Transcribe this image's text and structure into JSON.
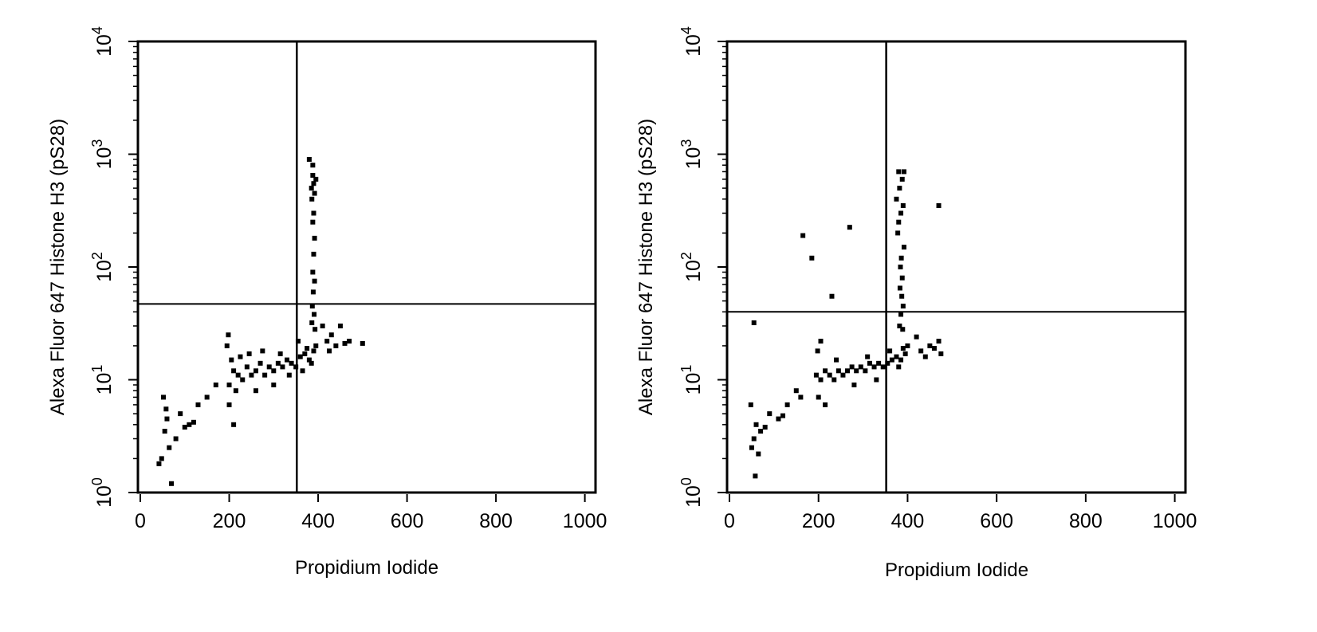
{
  "chart_data": [
    {
      "type": "scatter",
      "xlabel": "Propidium Iodide",
      "ylabel": "Alexa Fluor 647 Histone H3 (pS28)",
      "xlim": [
        0,
        1024
      ],
      "ylim": [
        1,
        10000
      ],
      "y_scale": "log",
      "x_ticks": [
        "0",
        "200",
        "400",
        "600",
        "800",
        "1000"
      ],
      "y_ticks": [
        {
          "base": "10",
          "exp": "0"
        },
        {
          "base": "10",
          "exp": "1"
        },
        {
          "base": "10",
          "exp": "2"
        },
        {
          "base": "10",
          "exp": "3"
        },
        {
          "base": "10",
          "exp": "4"
        }
      ],
      "gate": {
        "x": 352,
        "y": 47
      },
      "grid": false,
      "series": [
        {
          "values": [
            [
              200,
              9
            ],
            [
              210,
              12
            ],
            [
              215,
              8
            ],
            [
              220,
              11
            ],
            [
              230,
              10
            ],
            [
              240,
              13
            ],
            [
              250,
              11
            ],
            [
              260,
              12
            ],
            [
              270,
              14
            ],
            [
              280,
              11
            ],
            [
              290,
              13
            ],
            [
              300,
              12
            ],
            [
              310,
              14
            ],
            [
              320,
              13
            ],
            [
              330,
              15
            ],
            [
              340,
              14
            ],
            [
              350,
              13
            ],
            [
              360,
              16
            ],
            [
              370,
              17
            ],
            [
              380,
              15
            ],
            [
              390,
              18
            ],
            [
              395,
              20
            ],
            [
              200,
              6
            ],
            [
              205,
              15
            ],
            [
              195,
              20
            ],
            [
              198,
              25
            ],
            [
              210,
              4
            ],
            [
              225,
              16
            ],
            [
              260,
              8
            ],
            [
              300,
              9
            ],
            [
              245,
              17
            ],
            [
              275,
              18
            ],
            [
              315,
              17
            ],
            [
              335,
              11
            ],
            [
              355,
              22
            ],
            [
              365,
              12
            ],
            [
              375,
              19
            ],
            [
              385,
              14
            ],
            [
              385,
              500
            ],
            [
              390,
              550
            ],
            [
              392,
              450
            ],
            [
              388,
              650
            ],
            [
              395,
              600
            ],
            [
              386,
              400
            ],
            [
              390,
              300
            ],
            [
              388,
              250
            ],
            [
              392,
              180
            ],
            [
              390,
              130
            ],
            [
              388,
              90
            ],
            [
              392,
              75
            ],
            [
              389,
              60
            ],
            [
              387,
              45
            ],
            [
              391,
              38
            ],
            [
              386,
              32
            ],
            [
              393,
              28
            ],
            [
              380,
              900
            ],
            [
              388,
              800
            ],
            [
              420,
              22
            ],
            [
              440,
              20
            ],
            [
              460,
              21
            ],
            [
              430,
              25
            ],
            [
              450,
              30
            ],
            [
              470,
              22
            ],
            [
              500,
              21
            ],
            [
              410,
              30
            ],
            [
              425,
              18
            ],
            [
              48,
              2
            ],
            [
              55,
              3.5
            ],
            [
              60,
              4.5
            ],
            [
              52,
              7
            ],
            [
              70,
              1.2
            ],
            [
              90,
              5
            ],
            [
              110,
              4
            ],
            [
              130,
              6
            ],
            [
              150,
              7
            ],
            [
              65,
              2.5
            ],
            [
              80,
              3
            ],
            [
              100,
              3.8
            ],
            [
              120,
              4.2
            ],
            [
              170,
              9
            ],
            [
              42,
              1.8
            ],
            [
              58,
              5.5
            ]
          ]
        }
      ]
    },
    {
      "type": "scatter",
      "xlabel": "Propidium Iodide",
      "ylabel": "Alexa Fluor 647 Histone H3 (pS28)",
      "xlim": [
        0,
        1024
      ],
      "ylim": [
        1,
        10000
      ],
      "y_scale": "log",
      "x_ticks": [
        "0",
        "200",
        "400",
        "600",
        "800",
        "1000"
      ],
      "y_ticks": [
        {
          "base": "10",
          "exp": "0"
        },
        {
          "base": "10",
          "exp": "1"
        },
        {
          "base": "10",
          "exp": "2"
        },
        {
          "base": "10",
          "exp": "3"
        },
        {
          "base": "10",
          "exp": "4"
        }
      ],
      "gate": {
        "x": 352,
        "y": 40
      },
      "grid": false,
      "series": [
        {
          "values": [
            [
              195,
              11
            ],
            [
              205,
              10
            ],
            [
              215,
              12
            ],
            [
              225,
              11
            ],
            [
              235,
              10
            ],
            [
              245,
              12
            ],
            [
              255,
              11
            ],
            [
              265,
              12
            ],
            [
              275,
              13
            ],
            [
              285,
              12
            ],
            [
              295,
              13
            ],
            [
              305,
              12
            ],
            [
              315,
              14
            ],
            [
              325,
              13
            ],
            [
              335,
              14
            ],
            [
              345,
              13
            ],
            [
              355,
              14
            ],
            [
              365,
              15
            ],
            [
              375,
              16
            ],
            [
              385,
              15
            ],
            [
              395,
              17
            ],
            [
              400,
              20
            ],
            [
              200,
              7
            ],
            [
              198,
              18
            ],
            [
              205,
              22
            ],
            [
              215,
              6
            ],
            [
              240,
              15
            ],
            [
              280,
              9
            ],
            [
              310,
              16
            ],
            [
              330,
              10
            ],
            [
              360,
              18
            ],
            [
              380,
              13
            ],
            [
              390,
              19
            ],
            [
              385,
              300
            ],
            [
              380,
              250
            ],
            [
              375,
              400
            ],
            [
              390,
              350
            ],
            [
              382,
              500
            ],
            [
              388,
              600
            ],
            [
              378,
              200
            ],
            [
              392,
              150
            ],
            [
              386,
              120
            ],
            [
              384,
              100
            ],
            [
              388,
              80
            ],
            [
              383,
              65
            ],
            [
              387,
              55
            ],
            [
              390,
              45
            ],
            [
              385,
              38
            ],
            [
              382,
              30
            ],
            [
              389,
              28
            ],
            [
              380,
              700
            ],
            [
              392,
              700
            ],
            [
              430,
              18
            ],
            [
              450,
              20
            ],
            [
              470,
              22
            ],
            [
              440,
              16
            ],
            [
              460,
              19
            ],
            [
              420,
              24
            ],
            [
              475,
              17
            ],
            [
              165,
              190
            ],
            [
              185,
              120
            ],
            [
              230,
              55
            ],
            [
              270,
              225
            ],
            [
              470,
              350
            ],
            [
              50,
              2.5
            ],
            [
              55,
              3
            ],
            [
              60,
              4
            ],
            [
              48,
              6
            ],
            [
              58,
              1.4
            ],
            [
              70,
              3.5
            ],
            [
              90,
              5
            ],
            [
              110,
              4.5
            ],
            [
              130,
              6
            ],
            [
              150,
              8
            ],
            [
              55,
              32
            ],
            [
              65,
              2.2
            ],
            [
              80,
              3.8
            ],
            [
              120,
              4.8
            ],
            [
              160,
              7
            ]
          ]
        }
      ]
    }
  ]
}
